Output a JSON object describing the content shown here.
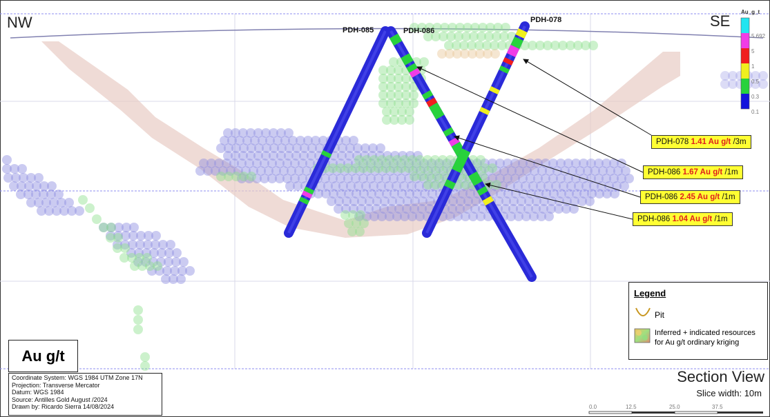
{
  "directions": {
    "west": "NW",
    "east": "SE"
  },
  "drillholes": [
    {
      "id": "PDH-085"
    },
    {
      "id": "PDH-086"
    },
    {
      "id": "PDH-078"
    }
  ],
  "callouts": [
    {
      "hole": "PDH-078",
      "grade": "1.41 Au g/t",
      "interval": " /3m"
    },
    {
      "hole": "PDH-086",
      "grade": "1.67 Au g/t",
      "interval": " /1m"
    },
    {
      "hole": "PDH-086",
      "grade": "2.45 Au g/t",
      "interval": " /1m"
    },
    {
      "hole": "PDH-086",
      "grade": "1.04 Au g/t",
      "interval": " /1m"
    }
  ],
  "color_scale": {
    "title": "Au_g_t",
    "labels": [
      "5.692",
      "5",
      "1",
      "0.5",
      "0.3",
      "0.1"
    ],
    "colors": [
      "#22e5f0",
      "#f03ce6",
      "#f01e1e",
      "#f0f01e",
      "#28d23c",
      "#1414dc"
    ]
  },
  "legend": {
    "title": "Legend",
    "pit_label": "Pit",
    "resources_label_line1": "Inferred + indicated resources",
    "resources_label_line2": "for Au g/t ordinary kriging",
    "pit_color": "#c8961e"
  },
  "grade_box": "Au g/t",
  "info": {
    "line1": "Coordinate System: WGS 1984 UTM Zone 17N",
    "line2": "Projection: Transverse Mercator",
    "line3": "Datum: WGS 1984",
    "line4": "Source: Antilles Gold  August /2024",
    "line5": "Drawn by: Ricardo Sierra 14/08/2024"
  },
  "section_title": "Section View",
  "slice_width": "Slice width: 10m",
  "scale_bar": {
    "labels": [
      "0.0",
      "12.5",
      "25.0",
      "37.5"
    ]
  },
  "colors": {
    "drillhole": "#2a2ad8",
    "block_blue": "#8c8ce0",
    "block_green": "#8ee08e",
    "pit_fill": "#e8c8c0",
    "grid": "#9a9af0",
    "callout_bg": "#ffff33",
    "grade_text": "#e0201c"
  }
}
